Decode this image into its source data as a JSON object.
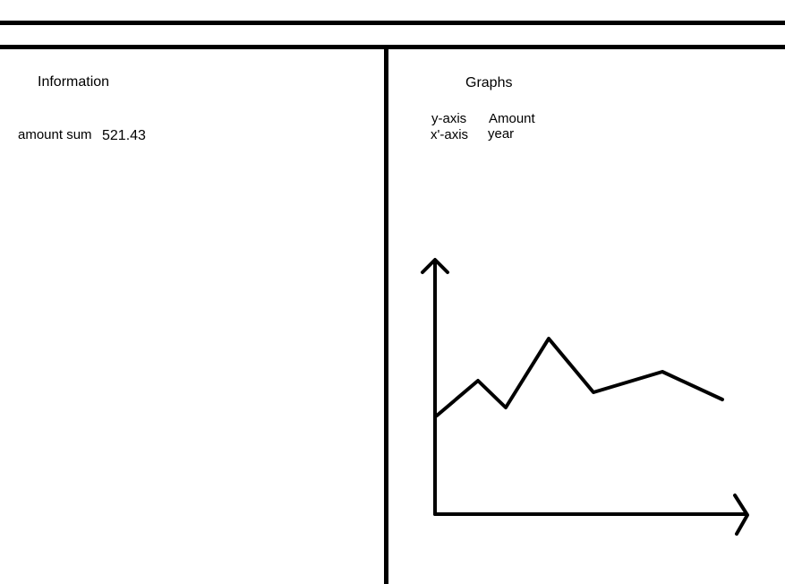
{
  "information": {
    "title": "Information",
    "amount_sum_label": "amount sum",
    "amount_sum_value": "521.43"
  },
  "graphs": {
    "title": "Graphs",
    "y_axis_label": "y-axis",
    "y_axis_value": "Amount",
    "x_axis_label": "x'-axis",
    "x_axis_value": "year"
  },
  "colors": {
    "line": "#000000",
    "background": "#ffffff"
  }
}
